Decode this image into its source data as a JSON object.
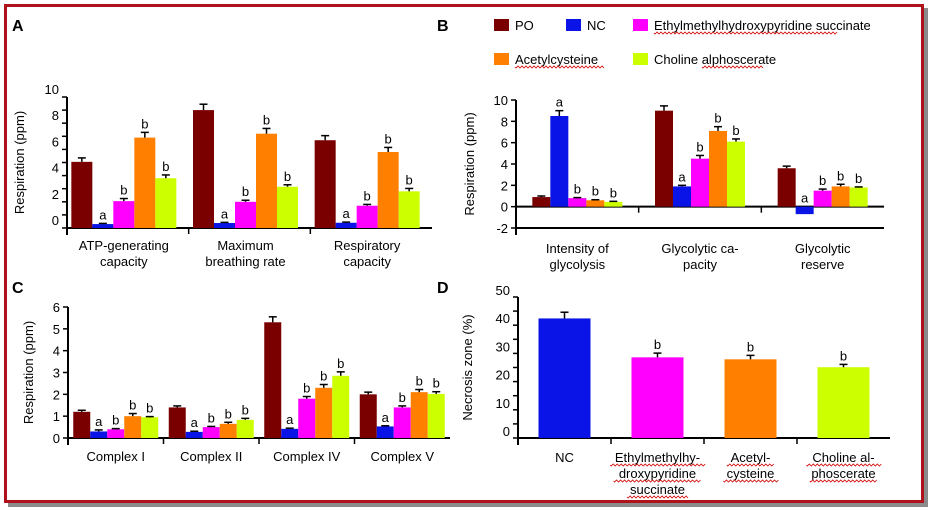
{
  "legend": [
    {
      "name": "PO",
      "color": "#7a0000",
      "spellcheck": false
    },
    {
      "name": "NC",
      "color": "#0a14e6",
      "spellcheck": false
    },
    {
      "name": "Ethylmethylhydroxypyridine succinate",
      "color": "#ff00ff",
      "spellcheck": true
    },
    {
      "name": "Acetylcysteine",
      "color": "#ff8000",
      "spellcheck": true
    },
    {
      "name": "Choline alphoscerate",
      "color": "#ccff00",
      "spellcheck": true
    }
  ],
  "chart_data": [
    {
      "panel": "A",
      "type": "bar",
      "ylabel": "Respiration (ppm)",
      "ylim": [
        0,
        10
      ],
      "yticks": [
        0,
        2,
        4,
        6,
        8,
        10
      ],
      "categories": [
        [
          "ATP-generating",
          "capacity"
        ],
        [
          "Maximum",
          "breathing rate"
        ],
        [
          "Respiratory",
          "capacity"
        ]
      ],
      "series": [
        {
          "name": "PO",
          "values": [
            5.05,
            9.0,
            6.7
          ],
          "errors": [
            0.3,
            0.45,
            0.35
          ],
          "sig": [
            "",
            "",
            ""
          ]
        },
        {
          "name": "NC",
          "values": [
            0.3,
            0.38,
            0.4
          ],
          "errors": [
            0.05,
            0.05,
            0.05
          ],
          "sig": [
            "a",
            "a",
            "a"
          ]
        },
        {
          "name": "Ethylmethylhydroxypyridine succinate",
          "values": [
            2.05,
            2.0,
            1.7
          ],
          "errors": [
            0.2,
            0.12,
            0.1
          ],
          "sig": [
            "b",
            "b",
            "b"
          ]
        },
        {
          "name": "Acetylcysteine",
          "values": [
            6.9,
            7.2,
            5.8
          ],
          "errors": [
            0.4,
            0.4,
            0.35
          ],
          "sig": [
            "b",
            "b",
            "b"
          ]
        },
        {
          "name": "Choline alphoscerate",
          "values": [
            3.8,
            3.15,
            2.8
          ],
          "errors": [
            0.25,
            0.15,
            0.22
          ],
          "sig": [
            "b",
            "b",
            "b"
          ]
        }
      ]
    },
    {
      "panel": "B",
      "type": "bar",
      "ylabel": "Respiration (ppm)",
      "ylim": [
        -2,
        10
      ],
      "yticks": [
        -2,
        0,
        2,
        4,
        6,
        8,
        10
      ],
      "categories": [
        [
          "Intensity of",
          "glycolysis"
        ],
        [
          "Glycolytic ca-",
          "pacity"
        ],
        [
          "Glycolytic",
          "reserve"
        ]
      ],
      "series": [
        {
          "name": "PO",
          "values": [
            0.9,
            9.0,
            3.6
          ],
          "errors": [
            0.1,
            0.45,
            0.2
          ],
          "sig": [
            "",
            "",
            ""
          ]
        },
        {
          "name": "NC",
          "values": [
            8.5,
            1.9,
            -0.7
          ],
          "errors": [
            0.5,
            0.1,
            0.0
          ],
          "sig": [
            "a",
            "a",
            "a"
          ]
        },
        {
          "name": "Ethylmethylhydroxypyridine succinate",
          "values": [
            0.8,
            4.5,
            1.5
          ],
          "errors": [
            0.05,
            0.3,
            0.15
          ],
          "sig": [
            "b",
            "b",
            "b"
          ]
        },
        {
          "name": "Acetylcysteine",
          "values": [
            0.6,
            7.1,
            1.9
          ],
          "errors": [
            0.05,
            0.4,
            0.2
          ],
          "sig": [
            "b",
            "b",
            "b"
          ]
        },
        {
          "name": "Choline alphoscerate",
          "values": [
            0.45,
            6.1,
            1.8
          ],
          "errors": [
            0.05,
            0.25,
            0.05
          ],
          "sig": [
            "b",
            "b",
            "b"
          ]
        }
      ]
    },
    {
      "panel": "C",
      "type": "bar",
      "ylabel": "Respiration (ppm)",
      "ylim": [
        0,
        6
      ],
      "yticks": [
        0,
        1,
        2,
        3,
        4,
        5,
        6
      ],
      "categories": [
        [
          "Complex I"
        ],
        [
          "Complex II"
        ],
        [
          "Complex IV"
        ],
        [
          "Complex V"
        ]
      ],
      "series": [
        {
          "name": "PO",
          "values": [
            1.2,
            1.4,
            5.3,
            2.0
          ],
          "errors": [
            0.07,
            0.07,
            0.25,
            0.1
          ],
          "sig": [
            "",
            "",
            "",
            ""
          ]
        },
        {
          "name": "NC",
          "values": [
            0.3,
            0.28,
            0.42,
            0.53
          ],
          "errors": [
            0.07,
            0.03,
            0.03,
            0.03
          ],
          "sig": [
            "a",
            "a",
            "a",
            "a"
          ]
        },
        {
          "name": "Ethylmethylhydroxypyridine succinate",
          "values": [
            0.4,
            0.5,
            1.8,
            1.4
          ],
          "errors": [
            0.03,
            0.03,
            0.1,
            0.07
          ],
          "sig": [
            "b",
            "b",
            "b",
            "b"
          ]
        },
        {
          "name": "Acetylcysteine",
          "values": [
            1.0,
            0.65,
            2.3,
            2.1
          ],
          "errors": [
            0.12,
            0.07,
            0.15,
            0.12
          ],
          "sig": [
            "b",
            "b",
            "b",
            "b"
          ]
        },
        {
          "name": "Choline alphoscerate",
          "values": [
            0.95,
            0.83,
            2.85,
            2.02
          ],
          "errors": [
            0.03,
            0.07,
            0.18,
            0.1
          ],
          "sig": [
            "b",
            "b",
            "b",
            "b"
          ]
        }
      ]
    },
    {
      "panel": "D",
      "type": "bar",
      "ylabel": "Necrosis zone (%)",
      "ylim": [
        0,
        50
      ],
      "yticks": [
        0,
        10,
        20,
        30,
        40,
        50
      ],
      "categories": [
        [
          "NC"
        ],
        [
          "Ethylmethylhy-",
          "droxypyridine",
          "succinate"
        ],
        [
          "Acetyl-",
          "cysteine"
        ],
        [
          "Choline al-",
          "phoscerate"
        ]
      ],
      "categories_spellcheck": [
        false,
        true,
        true,
        true
      ],
      "series": [
        {
          "name": "Necrosis zone",
          "values": [
            42.4,
            28.6,
            27.9,
            25.1
          ],
          "errors": [
            2.2,
            1.5,
            1.4,
            1.0
          ],
          "colors": [
            "#0a14e6",
            "#ff00ff",
            "#ff8000",
            "#ccff00"
          ],
          "sig": [
            "",
            "b",
            "b",
            "b"
          ]
        }
      ]
    }
  ]
}
